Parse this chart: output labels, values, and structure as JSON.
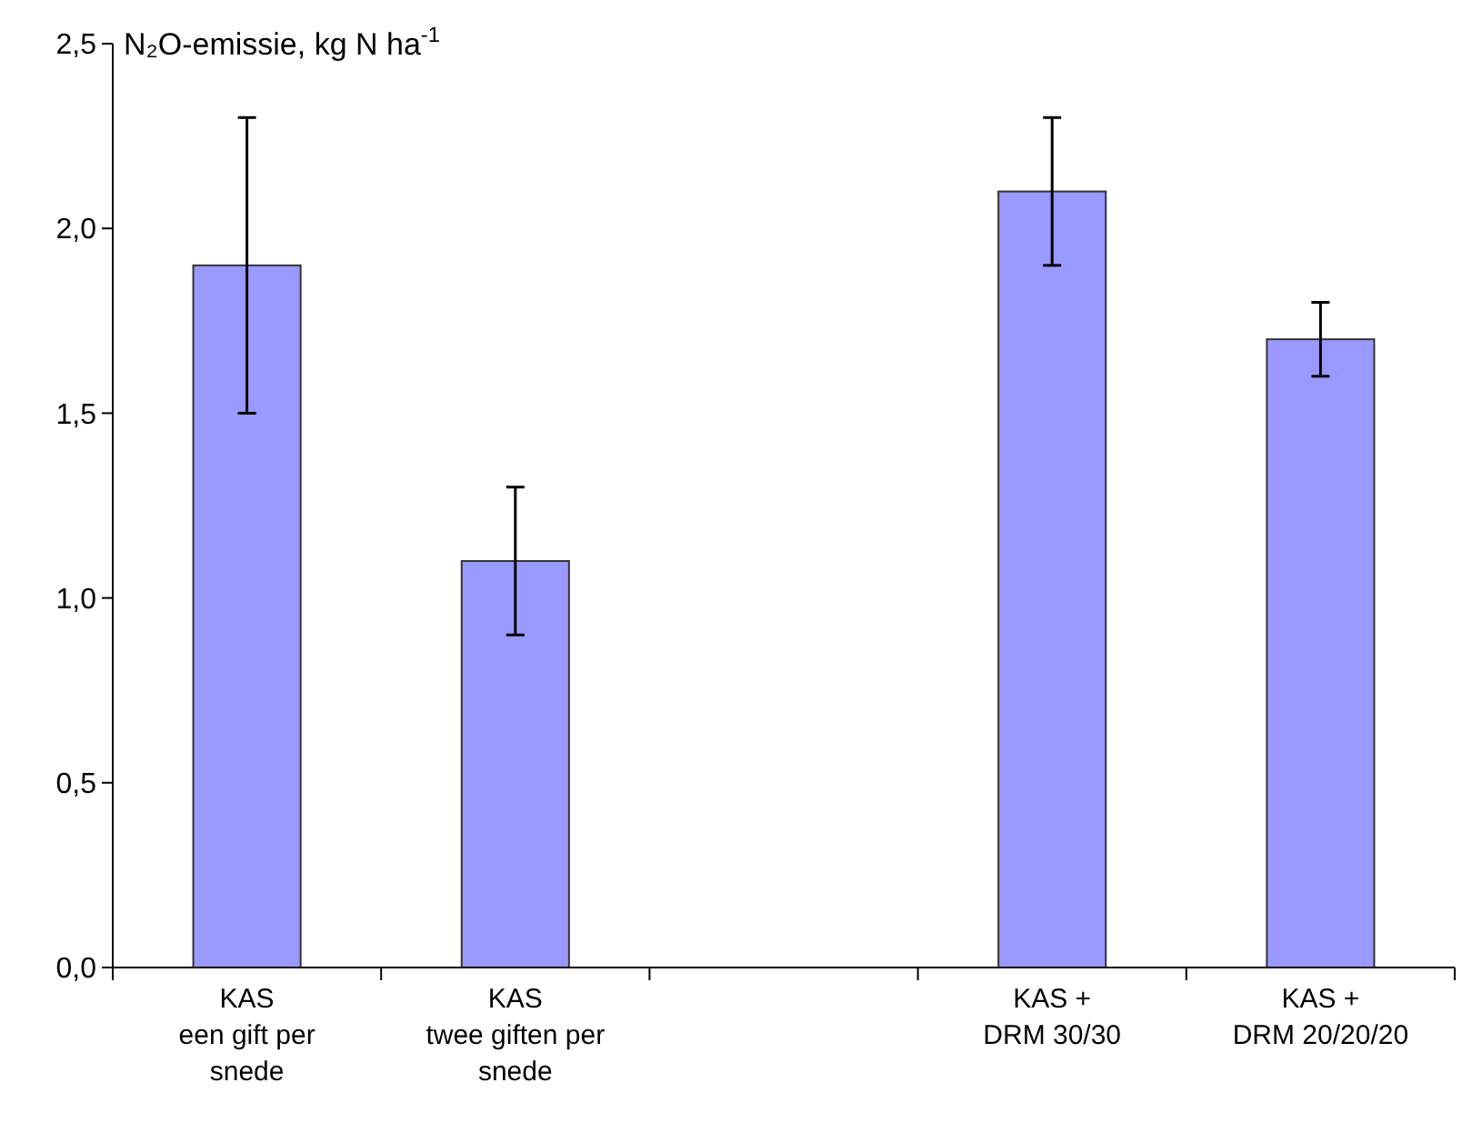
{
  "chart_data": {
    "type": "bar",
    "ylabel": "N₂O-emissie, kg N ha$^{-1}$",
    "categories": [
      "KAS\neen gift per\nsnede",
      "KAS\ntwee giften per\nsnede",
      null,
      "KAS +\nDRM 30/30",
      "KAS +\nDRM 20/20/20"
    ],
    "values": [
      1.9,
      1.1,
      null,
      2.1,
      1.7
    ],
    "errors": [
      0.4,
      0.2,
      null,
      0.2,
      0.1
    ],
    "color": "#9999ff",
    "ylim": [
      0,
      2.5
    ],
    "yticks": [
      {
        "value": 0,
        "label": "0,0"
      },
      {
        "value": 0.5,
        "label": "0,5"
      },
      {
        "value": 1,
        "label": "1,0"
      },
      {
        "value": 1.5,
        "label": "1,5"
      },
      {
        "value": 2,
        "label": "2,0"
      },
      {
        "value": 2.5,
        "label": "2,5"
      }
    ],
    "grid": false
  }
}
